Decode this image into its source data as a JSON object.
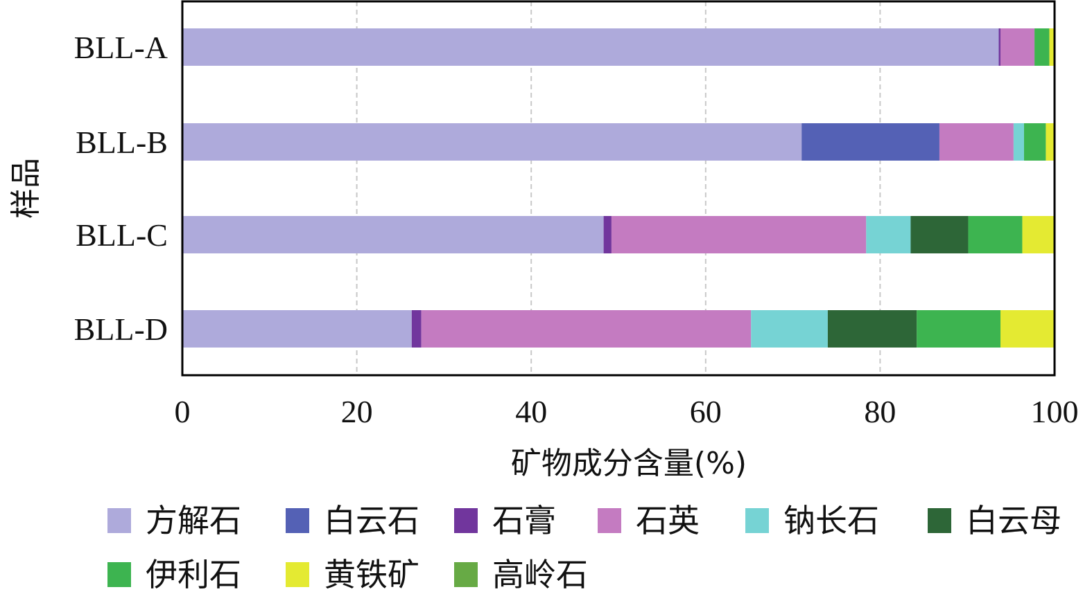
{
  "chart_data": {
    "type": "bar",
    "orientation": "horizontal",
    "stacked": true,
    "title": "",
    "xlabel": "矿物成分含量(%)",
    "ylabel": "样品",
    "xlim": [
      0,
      100
    ],
    "xticks": [
      0,
      20,
      40,
      60,
      80,
      100
    ],
    "grid": "vertical-dashed",
    "legend_position": "bottom",
    "categories": [
      "BLL-A",
      "BLL-B",
      "BLL-C",
      "BLL-D"
    ],
    "series": [
      {
        "name": "方解石",
        "color": "#aeaadb",
        "values": [
          93.6,
          71.0,
          48.3,
          26.3
        ]
      },
      {
        "name": "白云石",
        "color": "#5461b5",
        "values": [
          0.0,
          15.8,
          0.0,
          0.0
        ]
      },
      {
        "name": "石膏",
        "color": "#71369d",
        "values": [
          0.2,
          0.0,
          0.9,
          1.1
        ]
      },
      {
        "name": "石英",
        "color": "#c47bc1",
        "values": [
          3.9,
          8.5,
          29.2,
          37.8
        ]
      },
      {
        "name": "钠长石",
        "color": "#76d3d4",
        "values": [
          0.0,
          1.2,
          5.1,
          8.8
        ]
      },
      {
        "name": "白云母",
        "color": "#2d6637",
        "values": [
          0.0,
          0.0,
          6.6,
          10.2
        ]
      },
      {
        "name": "伊利石",
        "color": "#3db450",
        "values": [
          1.7,
          2.5,
          6.2,
          9.6
        ]
      },
      {
        "name": "黄铁矿",
        "color": "#e4ea32",
        "values": [
          0.6,
          1.0,
          3.7,
          6.2
        ]
      },
      {
        "name": "高岭石",
        "color": "#67aa45",
        "values": [
          0.0,
          0.0,
          0.0,
          0.0
        ]
      }
    ]
  }
}
